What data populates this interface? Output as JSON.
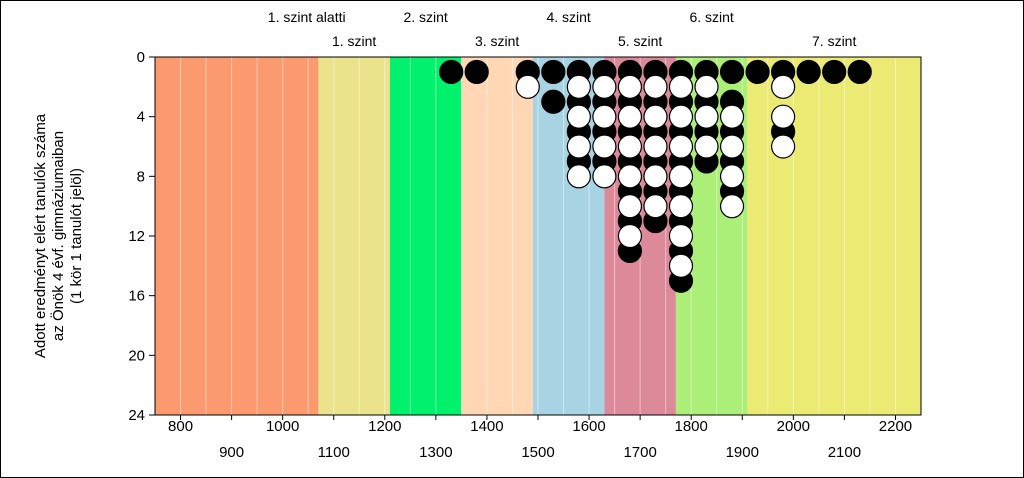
{
  "chart_data": {
    "type": "scatter",
    "ylabel_lines": [
      "Adott eredményt elért tanulók száma",
      "az Önök 4 évf. gimnáziumaiban",
      "(1 kör 1 tanulót jelöl)"
    ],
    "xlim": [
      750,
      2250
    ],
    "ylim": [
      0,
      24
    ],
    "y_reversed": true,
    "y_ticks": [
      0,
      4,
      8,
      12,
      16,
      20,
      24
    ],
    "x_ticks_upper": [
      800,
      1000,
      1200,
      1400,
      1600,
      1800,
      2000,
      2200
    ],
    "x_ticks_lower": [
      900,
      1100,
      1300,
      1500,
      1700,
      1900,
      2100
    ],
    "bands": [
      {
        "label": "1. szint alatti",
        "from": 750,
        "to": 1070,
        "color": "#FB9A6E",
        "label_row": "top"
      },
      {
        "label": "1. szint",
        "from": 1070,
        "to": 1210,
        "color": "#EBE38B",
        "label_row": "bottom"
      },
      {
        "label": "2. szint",
        "from": 1210,
        "to": 1350,
        "color": "#00F16C",
        "label_row": "top"
      },
      {
        "label": "3. szint",
        "from": 1350,
        "to": 1490,
        "color": "#FFD7B4",
        "label_row": "bottom"
      },
      {
        "label": "4. szint",
        "from": 1490,
        "to": 1630,
        "color": "#A8D3E3",
        "label_row": "top"
      },
      {
        "label": "5. szint",
        "from": 1630,
        "to": 1770,
        "color": "#DC899A",
        "label_row": "bottom"
      },
      {
        "label": "6. szint",
        "from": 1770,
        "to": 1910,
        "color": "#ABEF79",
        "label_row": "top"
      },
      {
        "label": "7. szint",
        "from": 1910,
        "to": 2250,
        "color": "#EBEA73",
        "label_row": "bottom"
      }
    ],
    "series": [
      {
        "color": "black",
        "points": [
          [
            1330,
            1
          ],
          [
            1380,
            1
          ],
          [
            1480,
            1
          ],
          [
            1530,
            1
          ],
          [
            1580,
            1
          ],
          [
            1630,
            1
          ],
          [
            1680,
            1
          ],
          [
            1730,
            1
          ],
          [
            1780,
            1
          ],
          [
            1830,
            1
          ],
          [
            1880,
            1
          ],
          [
            1930,
            1
          ],
          [
            1980,
            1
          ],
          [
            2030,
            1
          ],
          [
            2080,
            1
          ],
          [
            2130,
            1
          ],
          [
            1530,
            3
          ],
          [
            1580,
            3
          ],
          [
            1630,
            3
          ],
          [
            1680,
            3
          ],
          [
            1730,
            3
          ],
          [
            1780,
            3
          ],
          [
            1830,
            3
          ],
          [
            1880,
            3
          ],
          [
            1580,
            5
          ],
          [
            1630,
            5
          ],
          [
            1680,
            5
          ],
          [
            1730,
            5
          ],
          [
            1780,
            5
          ],
          [
            1830,
            5
          ],
          [
            1880,
            5
          ],
          [
            1980,
            5
          ],
          [
            1580,
            7
          ],
          [
            1630,
            7
          ],
          [
            1680,
            7
          ],
          [
            1730,
            7
          ],
          [
            1780,
            7
          ],
          [
            1830,
            7
          ],
          [
            1880,
            7
          ],
          [
            1680,
            9
          ],
          [
            1730,
            9
          ],
          [
            1780,
            9
          ],
          [
            1880,
            9
          ],
          [
            1680,
            11
          ],
          [
            1730,
            11
          ],
          [
            1780,
            11
          ],
          [
            1680,
            13
          ],
          [
            1780,
            13
          ],
          [
            1780,
            15
          ]
        ]
      },
      {
        "color": "white",
        "points": [
          [
            1480,
            2
          ],
          [
            1580,
            2
          ],
          [
            1630,
            2
          ],
          [
            1680,
            2
          ],
          [
            1730,
            2
          ],
          [
            1780,
            2
          ],
          [
            1830,
            2
          ],
          [
            1980,
            2
          ],
          [
            1580,
            4
          ],
          [
            1630,
            4
          ],
          [
            1680,
            4
          ],
          [
            1730,
            4
          ],
          [
            1780,
            4
          ],
          [
            1830,
            4
          ],
          [
            1880,
            4
          ],
          [
            1980,
            4
          ],
          [
            1580,
            6
          ],
          [
            1630,
            6
          ],
          [
            1680,
            6
          ],
          [
            1730,
            6
          ],
          [
            1780,
            6
          ],
          [
            1830,
            6
          ],
          [
            1880,
            6
          ],
          [
            1980,
            6
          ],
          [
            1580,
            8
          ],
          [
            1630,
            8
          ],
          [
            1680,
            8
          ],
          [
            1730,
            8
          ],
          [
            1780,
            8
          ],
          [
            1880,
            8
          ],
          [
            1680,
            10
          ],
          [
            1730,
            10
          ],
          [
            1780,
            10
          ],
          [
            1880,
            10
          ],
          [
            1680,
            12
          ],
          [
            1780,
            12
          ],
          [
            1780,
            14
          ]
        ]
      }
    ]
  }
}
